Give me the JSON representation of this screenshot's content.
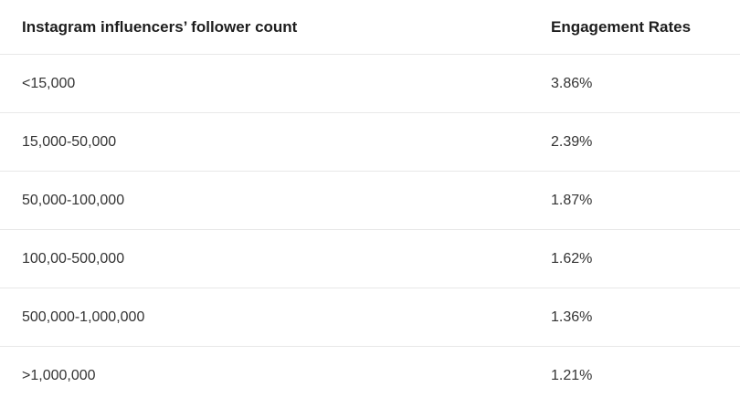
{
  "table": {
    "headers": [
      "Instagram influencers’ follower count",
      "Engagement Rates"
    ],
    "rows": [
      [
        "<15,000",
        "3.86%"
      ],
      [
        "15,000-50,000",
        "2.39%"
      ],
      [
        "50,000-100,000",
        "1.87%"
      ],
      [
        "100,00-500,000",
        "1.62%"
      ],
      [
        "500,000-1,000,000",
        "1.36%"
      ],
      [
        ">1,000,000",
        "1.21%"
      ]
    ]
  }
}
